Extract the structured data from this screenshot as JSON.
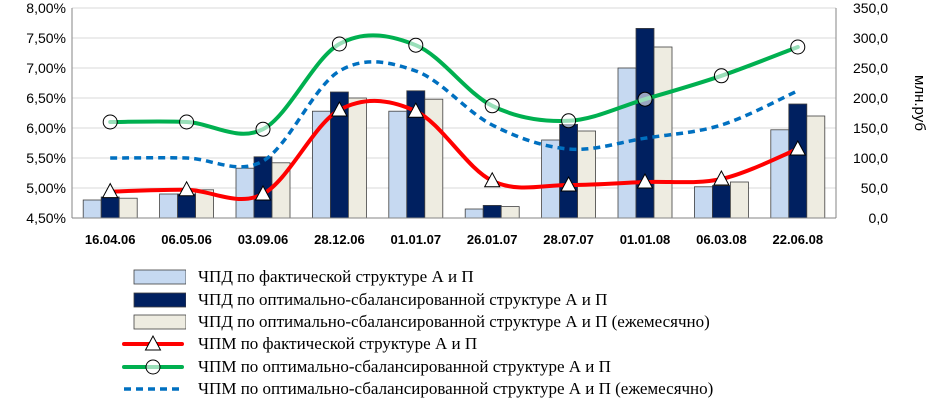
{
  "chart_data": {
    "type": "bar",
    "categories": [
      "16.04.06",
      "06.05.06",
      "03.09.06",
      "28.12.06",
      "01.01.07",
      "26.01.07",
      "28.07.07",
      "01.01.08",
      "06.03.08",
      "22.06.08"
    ],
    "y_left": {
      "range": [
        4.5,
        8.0
      ],
      "ticks": [
        "4,50%",
        "5,00%",
        "5,50%",
        "6,00%",
        "6,50%",
        "7,00%",
        "7,50%",
        "8,00%"
      ]
    },
    "y_right": {
      "label": "млн.руб",
      "range": [
        0,
        350
      ],
      "ticks": [
        "0,0",
        "50,0",
        "100,0",
        "150,0",
        "200,0",
        "250,0",
        "300,0",
        "350,0"
      ]
    },
    "grid": true,
    "legend_position": "bottom",
    "bar_series": [
      {
        "name": "ЧПД по фактической структуре А и П",
        "axis": "left",
        "color": "#c6d9f1",
        "values": [
          4.8,
          4.9,
          5.33,
          6.28,
          6.28,
          4.65,
          5.8,
          7.0,
          5.02,
          5.97
        ]
      },
      {
        "name": "ЧПД по оптимально-сбалансированной структуре А и П",
        "axis": "left",
        "color": "#002060",
        "values": [
          4.85,
          4.9,
          5.52,
          6.6,
          6.62,
          4.71,
          6.06,
          7.66,
          5.04,
          6.4
        ]
      },
      {
        "name": "ЧПД по оптимально-сбалансированной структуре А и П (ежемесячно)",
        "axis": "left",
        "color": "#eeece1",
        "values": [
          4.83,
          4.97,
          5.42,
          6.5,
          6.48,
          4.69,
          5.95,
          7.35,
          5.1,
          6.2
        ]
      }
    ],
    "line_series": [
      {
        "name": "ЧПМ по фактической структуре А и П",
        "axis": "right",
        "color": "#ff0000",
        "style": "solid",
        "marker": "triangle",
        "values": [
          44,
          47,
          40,
          180,
          178,
          62,
          55,
          60,
          65,
          115
        ]
      },
      {
        "name": "ЧПМ по оптимально-сбалансированной структуре А и П",
        "axis": "right",
        "color": "#00b050",
        "style": "solid",
        "marker": "circle",
        "values": [
          160,
          160,
          148,
          290,
          288,
          187,
          162,
          198,
          237,
          285
        ]
      },
      {
        "name": "ЧПМ по оптимально-сбалансированной структуре А и П (ежемесячно)",
        "axis": "right",
        "color": "#0070c0",
        "style": "dashed",
        "marker": "none",
        "values": [
          100,
          100,
          95,
          245,
          245,
          155,
          115,
          133,
          155,
          212
        ]
      }
    ]
  }
}
